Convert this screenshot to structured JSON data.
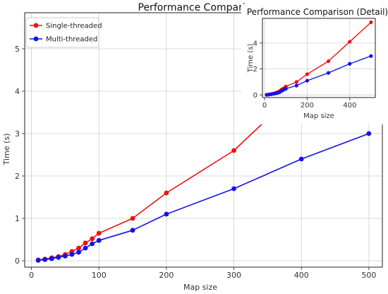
{
  "main_chart": {
    "type": "line",
    "title": "Performance Comparison",
    "xlabel": "Map size",
    "ylabel": "Time (s)",
    "xlim": [
      -10,
      520
    ],
    "ylim": [
      -0.15,
      5.85
    ],
    "xticks": [
      0,
      100,
      200,
      300,
      400,
      500
    ],
    "yticks": [
      0,
      1,
      2,
      3,
      4,
      5
    ],
    "grid": true,
    "legend_position": "top-left",
    "series": [
      {
        "name": "Single-threaded",
        "color": "#ee1111",
        "points": [
          [
            10,
            0.02
          ],
          [
            20,
            0.04
          ],
          [
            30,
            0.07
          ],
          [
            40,
            0.1
          ],
          [
            50,
            0.15
          ],
          [
            60,
            0.22
          ],
          [
            70,
            0.3
          ],
          [
            80,
            0.42
          ],
          [
            90,
            0.52
          ],
          [
            100,
            0.65
          ],
          [
            150,
            1.0
          ],
          [
            200,
            1.6
          ],
          [
            300,
            2.6
          ],
          [
            400,
            4.1
          ],
          [
            500,
            5.6
          ]
        ]
      },
      {
        "name": "Multi-threaded",
        "color": "#1111ee",
        "points": [
          [
            10,
            0.01
          ],
          [
            20,
            0.03
          ],
          [
            30,
            0.05
          ],
          [
            40,
            0.08
          ],
          [
            50,
            0.11
          ],
          [
            60,
            0.15
          ],
          [
            70,
            0.2
          ],
          [
            80,
            0.3
          ],
          [
            90,
            0.4
          ],
          [
            100,
            0.48
          ],
          [
            150,
            0.72
          ],
          [
            200,
            1.1
          ],
          [
            300,
            1.7
          ],
          [
            400,
            2.4
          ],
          [
            500,
            3.0
          ]
        ]
      }
    ]
  },
  "inset_chart": {
    "type": "line",
    "title": "Performance Comparison (Detail)",
    "xlabel": "Map size",
    "ylabel": "Time (s)",
    "xlim": [
      -10,
      520
    ],
    "ylim": [
      -0.2,
      5.9
    ],
    "xticks": [
      0,
      200,
      400
    ],
    "yticks": [
      0,
      2,
      4
    ],
    "grid": true,
    "series_ref": "main_chart.series"
  },
  "chart_data": [
    {
      "type": "line",
      "title": "Performance Comparison",
      "xlabel": "Map size",
      "ylabel": "Time (s)",
      "xlim": [
        -10,
        520
      ],
      "ylim": [
        -0.15,
        5.85
      ],
      "grid": true,
      "legend": "top-left",
      "series": [
        {
          "name": "Single-threaded",
          "x": [
            10,
            20,
            30,
            40,
            50,
            60,
            70,
            80,
            90,
            100,
            150,
            200,
            300,
            400,
            500
          ],
          "y": [
            0.02,
            0.04,
            0.07,
            0.1,
            0.15,
            0.22,
            0.3,
            0.42,
            0.52,
            0.65,
            1.0,
            1.6,
            2.6,
            4.1,
            5.6
          ]
        },
        {
          "name": "Multi-threaded",
          "x": [
            10,
            20,
            30,
            40,
            50,
            60,
            70,
            80,
            90,
            100,
            150,
            200,
            300,
            400,
            500
          ],
          "y": [
            0.01,
            0.03,
            0.05,
            0.08,
            0.11,
            0.15,
            0.2,
            0.3,
            0.4,
            0.48,
            0.72,
            1.1,
            1.7,
            2.4,
            3.0
          ]
        }
      ]
    },
    {
      "type": "line",
      "title": "Performance Comparison (Detail)",
      "xlabel": "Map size",
      "ylabel": "Time (s)",
      "xlim": [
        -10,
        520
      ],
      "ylim": [
        -0.2,
        5.9
      ],
      "grid": true,
      "series": [
        {
          "name": "Single-threaded",
          "x": [
            10,
            20,
            30,
            40,
            50,
            60,
            70,
            80,
            90,
            100,
            150,
            200,
            300,
            400,
            500
          ],
          "y": [
            0.02,
            0.04,
            0.07,
            0.1,
            0.15,
            0.22,
            0.3,
            0.42,
            0.52,
            0.65,
            1.0,
            1.6,
            2.6,
            4.1,
            5.6
          ]
        },
        {
          "name": "Multi-threaded",
          "x": [
            10,
            20,
            30,
            40,
            50,
            60,
            70,
            80,
            90,
            100,
            150,
            200,
            300,
            400,
            500
          ],
          "y": [
            0.01,
            0.03,
            0.05,
            0.08,
            0.11,
            0.15,
            0.2,
            0.3,
            0.4,
            0.48,
            0.72,
            1.1,
            1.7,
            2.4,
            3.0
          ]
        }
      ]
    }
  ]
}
